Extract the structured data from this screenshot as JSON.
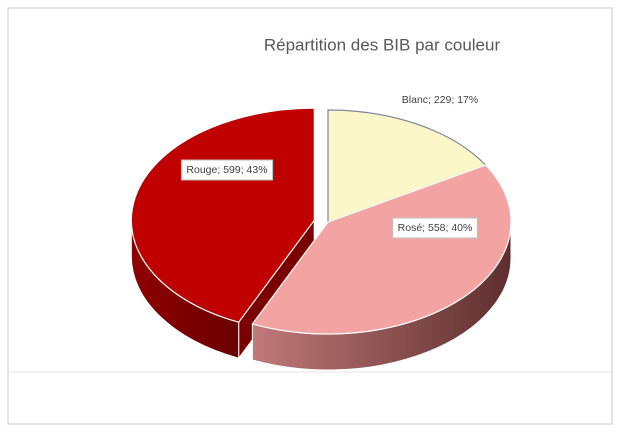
{
  "chart_data": {
    "type": "pie",
    "title": "Répartition des BIB par couleur",
    "categories": [
      "Blanc",
      "Rosé",
      "Rouge"
    ],
    "values": [
      229,
      558,
      599
    ],
    "value_labels": [
      "Blanc; 229; 17%",
      "Rosé; 558; 40%",
      "Rouge; 599; 43%"
    ],
    "colors": [
      "#fbf7c9",
      "#f4a3a3",
      "#c00000"
    ]
  }
}
